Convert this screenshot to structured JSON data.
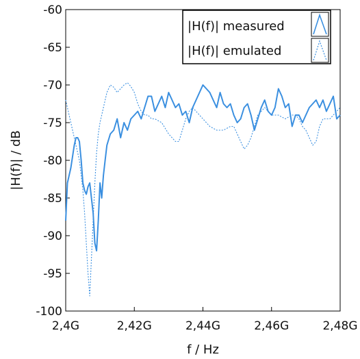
{
  "chart_data": {
    "type": "line",
    "title": "",
    "xlabel": "f / Hz",
    "ylabel": "|H(f)| / dB",
    "xlim": [
      2.4,
      2.48
    ],
    "ylim": [
      -100,
      -60
    ],
    "x_ticks": [
      2.4,
      2.42,
      2.44,
      2.46,
      2.48
    ],
    "x_tick_labels": [
      "2,4G",
      "2,42G",
      "2,44G",
      "2,46G",
      "2,48G"
    ],
    "y_ticks": [
      -100,
      -95,
      -90,
      -85,
      -80,
      -75,
      -70,
      -65,
      -60
    ],
    "y_tick_labels": [
      "-100",
      "-95",
      "-90",
      "-85",
      "-80",
      "-75",
      "-70",
      "-65",
      "-60"
    ],
    "grid": false,
    "legend_position": "top-right",
    "series": [
      {
        "name": "|H(f)| measured",
        "color": "#3a8fe0",
        "style": "solid",
        "x": [
          2.4,
          2.4005,
          2.401,
          2.4015,
          2.402,
          2.4025,
          2.403,
          2.4035,
          2.404,
          2.4045,
          2.405,
          2.4055,
          2.406,
          2.4065,
          2.407,
          2.4075,
          2.408,
          2.4085,
          2.409,
          2.4095,
          2.41,
          2.4105,
          2.411,
          2.4115,
          2.412,
          2.413,
          2.414,
          2.415,
          2.416,
          2.417,
          2.418,
          2.419,
          2.42,
          2.421,
          2.422,
          2.423,
          2.424,
          2.425,
          2.426,
          2.427,
          2.428,
          2.429,
          2.43,
          2.431,
          2.432,
          2.433,
          2.434,
          2.435,
          2.436,
          2.437,
          2.438,
          2.439,
          2.44,
          2.441,
          2.442,
          2.443,
          2.444,
          2.445,
          2.446,
          2.447,
          2.448,
          2.449,
          2.45,
          2.451,
          2.452,
          2.453,
          2.454,
          2.455,
          2.456,
          2.457,
          2.458,
          2.459,
          2.46,
          2.461,
          2.462,
          2.463,
          2.464,
          2.465,
          2.466,
          2.467,
          2.468,
          2.469,
          2.47,
          2.471,
          2.472,
          2.473,
          2.474,
          2.475,
          2.476,
          2.477,
          2.478,
          2.479,
          2.48
        ],
        "y": [
          -88,
          -83,
          -82,
          -81,
          -79.5,
          -78,
          -77,
          -77,
          -77.5,
          -80,
          -83,
          -84,
          -84.5,
          -83.5,
          -83,
          -85,
          -87,
          -91,
          -92,
          -88,
          -83,
          -85,
          -82,
          -80,
          -78,
          -76.5,
          -76,
          -74.5,
          -77,
          -75,
          -76,
          -74.5,
          -74,
          -73.5,
          -74.5,
          -73,
          -71.5,
          -71.5,
          -73.5,
          -72.5,
          -71.5,
          -73,
          -71,
          -72,
          -73,
          -72.5,
          -74,
          -73.5,
          -75,
          -73,
          -72,
          -71,
          -70,
          -70.5,
          -71,
          -72,
          -73,
          -71,
          -72.5,
          -73,
          -72.5,
          -74,
          -75,
          -74.5,
          -73,
          -72.5,
          -74,
          -76,
          -74.5,
          -73,
          -72,
          -73.5,
          -74,
          -73,
          -70.5,
          -71.5,
          -73,
          -72.5,
          -75.5,
          -74,
          -74,
          -75,
          -74,
          -73,
          -72.5,
          -72,
          -73,
          -72,
          -73.5,
          -72.5,
          -71.5,
          -74.5,
          -74
        ]
      },
      {
        "name": "|H(f)| emulated",
        "color": "#3a8fe0",
        "style": "dotted",
        "x": [
          2.4,
          2.401,
          2.402,
          2.403,
          2.404,
          2.405,
          2.4055,
          2.406,
          2.4065,
          2.407,
          2.4075,
          2.408,
          2.4085,
          2.409,
          2.4095,
          2.41,
          2.411,
          2.412,
          2.413,
          2.414,
          2.415,
          2.416,
          2.417,
          2.418,
          2.419,
          2.42,
          2.421,
          2.422,
          2.423,
          2.424,
          2.425,
          2.426,
          2.428,
          2.43,
          2.432,
          2.433,
          2.434,
          2.435,
          2.436,
          2.437,
          2.438,
          2.44,
          2.442,
          2.444,
          2.446,
          2.448,
          2.449,
          2.45,
          2.451,
          2.452,
          2.453,
          2.454,
          2.455,
          2.456,
          2.457,
          2.458,
          2.46,
          2.462,
          2.464,
          2.466,
          2.467,
          2.468,
          2.469,
          2.47,
          2.471,
          2.472,
          2.473,
          2.474,
          2.475,
          2.476,
          2.477,
          2.478,
          2.479,
          2.48
        ],
        "y": [
          -72,
          -74,
          -76,
          -78,
          -80,
          -84,
          -87,
          -91,
          -95,
          -98,
          -93,
          -88,
          -83,
          -79,
          -76.5,
          -75,
          -73,
          -71,
          -70,
          -70.3,
          -71,
          -70.5,
          -70,
          -69.7,
          -70.2,
          -71,
          -72.5,
          -73.5,
          -74,
          -74,
          -74.5,
          -74.5,
          -75,
          -76.5,
          -77.5,
          -77.5,
          -76,
          -74.5,
          -73.5,
          -73,
          -73.5,
          -74.5,
          -75.5,
          -76,
          -76,
          -75.5,
          -75.5,
          -76.5,
          -77.5,
          -78.5,
          -78,
          -77,
          -75.5,
          -74,
          -73.5,
          -73,
          -74,
          -74,
          -74.5,
          -74,
          -74,
          -74.5,
          -75.5,
          -76,
          -77,
          -78,
          -77.5,
          -75.5,
          -74.5,
          -74.5,
          -74.5,
          -74,
          -73.5,
          -73
        ]
      }
    ]
  }
}
